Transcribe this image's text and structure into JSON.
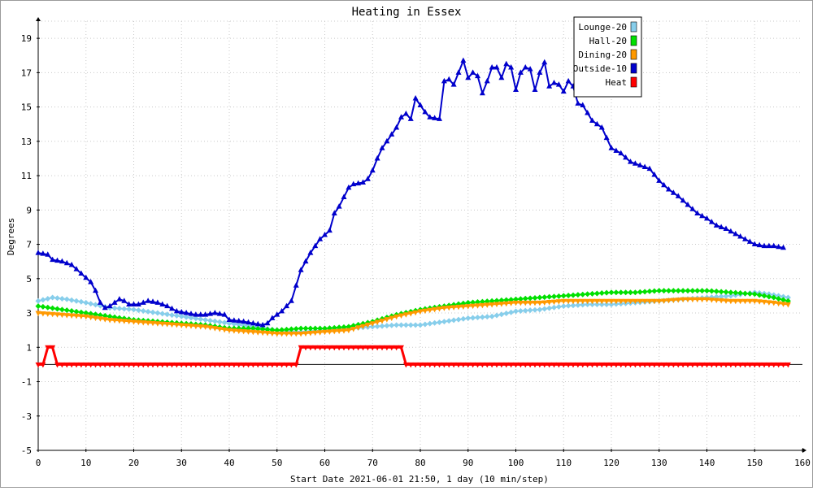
{
  "chart_data": {
    "type": "line",
    "title": "Heating in Essex",
    "xlabel": "Start Date 2021-06-01 21:50, 1 day (10 min/step)",
    "ylabel": "Degrees",
    "xlim": [
      0,
      160
    ],
    "ylim": [
      -5,
      20
    ],
    "x_ticks": [
      0,
      10,
      20,
      30,
      40,
      50,
      60,
      70,
      80,
      90,
      100,
      110,
      120,
      130,
      140,
      150,
      160
    ],
    "y_ticks": [
      -5,
      -3,
      -1,
      1,
      3,
      5,
      7,
      9,
      11,
      13,
      15,
      17,
      19
    ],
    "grid": true,
    "legend_position": "top-right",
    "series": [
      {
        "name": "Lounge-20",
        "color": "#87ceeb",
        "marker": "diamond",
        "points": [
          [
            0,
            3.7
          ],
          [
            3,
            3.9
          ],
          [
            6,
            3.8
          ],
          [
            10,
            3.6
          ],
          [
            15,
            3.3
          ],
          [
            20,
            3.2
          ],
          [
            25,
            3.0
          ],
          [
            30,
            2.8
          ],
          [
            35,
            2.6
          ],
          [
            40,
            2.4
          ],
          [
            45,
            2.2
          ],
          [
            50,
            2.0
          ],
          [
            55,
            1.9
          ],
          [
            60,
            2.0
          ],
          [
            65,
            2.1
          ],
          [
            70,
            2.2
          ],
          [
            75,
            2.3
          ],
          [
            80,
            2.3
          ],
          [
            85,
            2.5
          ],
          [
            90,
            2.7
          ],
          [
            95,
            2.8
          ],
          [
            100,
            3.1
          ],
          [
            105,
            3.2
          ],
          [
            110,
            3.4
          ],
          [
            115,
            3.5
          ],
          [
            120,
            3.5
          ],
          [
            125,
            3.6
          ],
          [
            130,
            3.7
          ],
          [
            135,
            3.8
          ],
          [
            140,
            3.9
          ],
          [
            145,
            4.0
          ],
          [
            150,
            4.2
          ],
          [
            153,
            4.1
          ],
          [
            157,
            3.9
          ]
        ]
      },
      {
        "name": "Hall-20",
        "color": "#00e000",
        "marker": "diamond",
        "points": [
          [
            0,
            3.4
          ],
          [
            5,
            3.2
          ],
          [
            10,
            3.0
          ],
          [
            15,
            2.8
          ],
          [
            20,
            2.6
          ],
          [
            25,
            2.5
          ],
          [
            30,
            2.4
          ],
          [
            35,
            2.3
          ],
          [
            40,
            2.1
          ],
          [
            45,
            2.1
          ],
          [
            50,
            2.0
          ],
          [
            55,
            2.1
          ],
          [
            60,
            2.1
          ],
          [
            65,
            2.2
          ],
          [
            70,
            2.5
          ],
          [
            75,
            2.9
          ],
          [
            80,
            3.2
          ],
          [
            85,
            3.4
          ],
          [
            90,
            3.6
          ],
          [
            95,
            3.7
          ],
          [
            100,
            3.8
          ],
          [
            105,
            3.9
          ],
          [
            110,
            4.0
          ],
          [
            115,
            4.1
          ],
          [
            120,
            4.2
          ],
          [
            125,
            4.2
          ],
          [
            130,
            4.3
          ],
          [
            135,
            4.3
          ],
          [
            140,
            4.3
          ],
          [
            145,
            4.2
          ],
          [
            150,
            4.1
          ],
          [
            154,
            3.9
          ],
          [
            157,
            3.7
          ]
        ]
      },
      {
        "name": "Dining-20",
        "color": "#ff9900",
        "marker": "triangle-down",
        "points": [
          [
            0,
            3.0
          ],
          [
            5,
            2.9
          ],
          [
            10,
            2.8
          ],
          [
            15,
            2.6
          ],
          [
            20,
            2.5
          ],
          [
            25,
            2.4
          ],
          [
            30,
            2.3
          ],
          [
            35,
            2.2
          ],
          [
            40,
            2.0
          ],
          [
            45,
            1.9
          ],
          [
            50,
            1.8
          ],
          [
            55,
            1.8
          ],
          [
            60,
            1.9
          ],
          [
            65,
            2.0
          ],
          [
            70,
            2.4
          ],
          [
            75,
            2.8
          ],
          [
            80,
            3.1
          ],
          [
            85,
            3.3
          ],
          [
            90,
            3.4
          ],
          [
            95,
            3.5
          ],
          [
            100,
            3.6
          ],
          [
            105,
            3.6
          ],
          [
            110,
            3.7
          ],
          [
            115,
            3.7
          ],
          [
            120,
            3.7
          ],
          [
            125,
            3.7
          ],
          [
            130,
            3.7
          ],
          [
            135,
            3.8
          ],
          [
            140,
            3.8
          ],
          [
            145,
            3.7
          ],
          [
            150,
            3.7
          ],
          [
            154,
            3.6
          ],
          [
            157,
            3.5
          ]
        ]
      },
      {
        "name": "Outside-10",
        "color": "#0000cc",
        "marker": "triangle",
        "points": [
          [
            0,
            6.5
          ],
          [
            2,
            6.4
          ],
          [
            3,
            6.1
          ],
          [
            5,
            6.0
          ],
          [
            7,
            5.8
          ],
          [
            9,
            5.3
          ],
          [
            11,
            4.8
          ],
          [
            12,
            4.3
          ],
          [
            13,
            3.6
          ],
          [
            14,
            3.3
          ],
          [
            15,
            3.4
          ],
          [
            16,
            3.6
          ],
          [
            17,
            3.8
          ],
          [
            18,
            3.7
          ],
          [
            19,
            3.5
          ],
          [
            21,
            3.5
          ],
          [
            23,
            3.7
          ],
          [
            25,
            3.6
          ],
          [
            27,
            3.4
          ],
          [
            29,
            3.1
          ],
          [
            31,
            3.0
          ],
          [
            33,
            2.9
          ],
          [
            35,
            2.9
          ],
          [
            37,
            3.0
          ],
          [
            39,
            2.9
          ],
          [
            40,
            2.6
          ],
          [
            43,
            2.5
          ],
          [
            45,
            2.4
          ],
          [
            47,
            2.3
          ],
          [
            48,
            2.4
          ],
          [
            49,
            2.7
          ],
          [
            51,
            3.1
          ],
          [
            53,
            3.7
          ],
          [
            55,
            5.5
          ],
          [
            57,
            6.5
          ],
          [
            59,
            7.3
          ],
          [
            61,
            7.8
          ],
          [
            62,
            8.8
          ],
          [
            63,
            9.2
          ],
          [
            65,
            10.3
          ],
          [
            66,
            10.5
          ],
          [
            68,
            10.6
          ],
          [
            69,
            10.8
          ],
          [
            70,
            11.3
          ],
          [
            71,
            12.0
          ],
          [
            72,
            12.6
          ],
          [
            73,
            13.0
          ],
          [
            74,
            13.4
          ],
          [
            75,
            13.8
          ],
          [
            76,
            14.4
          ],
          [
            77,
            14.6
          ],
          [
            78,
            14.3
          ],
          [
            79,
            15.5
          ],
          [
            80,
            15.1
          ],
          [
            81,
            14.7
          ],
          [
            82,
            14.4
          ],
          [
            84,
            14.3
          ],
          [
            85,
            16.5
          ],
          [
            86,
            16.6
          ],
          [
            87,
            16.3
          ],
          [
            88,
            17.0
          ],
          [
            89,
            17.7
          ],
          [
            90,
            16.7
          ],
          [
            91,
            17.0
          ],
          [
            92,
            16.8
          ],
          [
            93,
            15.8
          ],
          [
            94,
            16.5
          ],
          [
            95,
            17.3
          ],
          [
            96,
            17.3
          ],
          [
            97,
            16.7
          ],
          [
            98,
            17.5
          ],
          [
            99,
            17.3
          ],
          [
            100,
            16.0
          ],
          [
            101,
            17.0
          ],
          [
            102,
            17.3
          ],
          [
            103,
            17.2
          ],
          [
            104,
            16.0
          ],
          [
            105,
            17.0
          ],
          [
            106,
            17.6
          ],
          [
            107,
            16.2
          ],
          [
            108,
            16.4
          ],
          [
            109,
            16.3
          ],
          [
            110,
            15.9
          ],
          [
            111,
            16.5
          ],
          [
            112,
            16.2
          ],
          [
            113,
            15.2
          ],
          [
            114,
            15.1
          ],
          [
            116,
            14.2
          ],
          [
            118,
            13.8
          ],
          [
            120,
            12.6
          ],
          [
            122,
            12.3
          ],
          [
            124,
            11.8
          ],
          [
            126,
            11.6
          ],
          [
            128,
            11.4
          ],
          [
            130,
            10.7
          ],
          [
            132,
            10.2
          ],
          [
            134,
            9.8
          ],
          [
            136,
            9.3
          ],
          [
            138,
            8.8
          ],
          [
            140,
            8.5
          ],
          [
            142,
            8.1
          ],
          [
            144,
            7.9
          ],
          [
            146,
            7.6
          ],
          [
            148,
            7.3
          ],
          [
            150,
            7.0
          ],
          [
            152,
            6.9
          ],
          [
            154,
            6.9
          ],
          [
            156,
            6.8
          ]
        ]
      },
      {
        "name": "Heat",
        "color": "#ff0000",
        "marker": "triangle-down",
        "points": [
          [
            0,
            0
          ],
          [
            1,
            0
          ],
          [
            2,
            1
          ],
          [
            3,
            1
          ],
          [
            4,
            0
          ],
          [
            54,
            0
          ],
          [
            55,
            1
          ],
          [
            76,
            1
          ],
          [
            77,
            0
          ],
          [
            157,
            0
          ]
        ]
      }
    ]
  }
}
